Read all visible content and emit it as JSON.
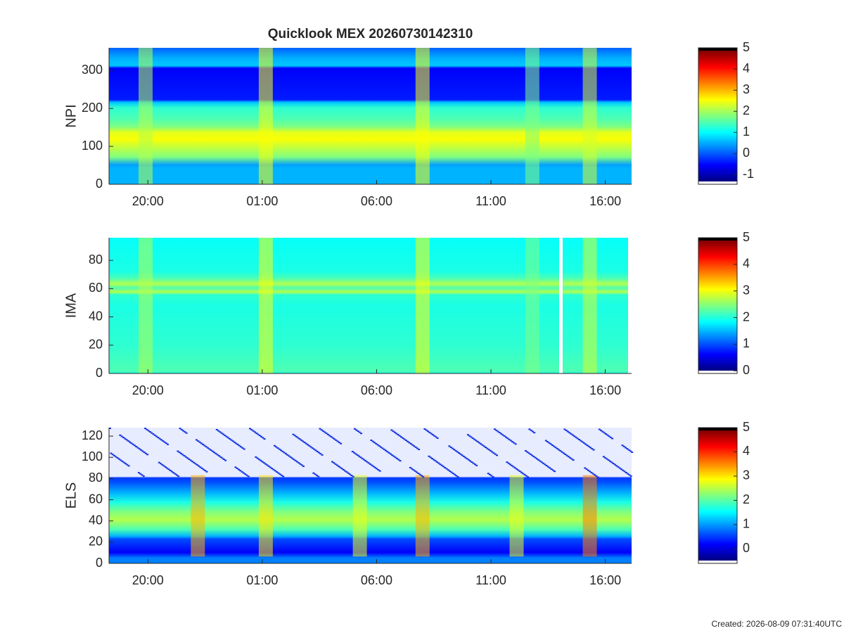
{
  "chart_data": [
    {
      "type": "heatmap",
      "title": "Quicklook MEX 20260730142310",
      "ylabel": "NPI",
      "xlim": [
        18.3,
        41.15
      ],
      "xticks": [
        {
          "value": 20,
          "label": "20:00"
        },
        {
          "value": 25,
          "label": "01:00"
        },
        {
          "value": 30,
          "label": "06:00"
        },
        {
          "value": 35,
          "label": "11:00"
        },
        {
          "value": 40,
          "label": "16:00"
        }
      ],
      "ylim": [
        0,
        360
      ],
      "yticks": [
        0,
        100,
        200,
        300
      ],
      "clim": [
        -1.45,
        5
      ],
      "cticks": [
        -1,
        0,
        1,
        2,
        3,
        4,
        5
      ]
    },
    {
      "type": "heatmap",
      "ylabel": "IMA",
      "xlim": [
        18.3,
        41.15
      ],
      "xticks": [
        {
          "value": 20,
          "label": "20:00"
        },
        {
          "value": 25,
          "label": "01:00"
        },
        {
          "value": 30,
          "label": "06:00"
        },
        {
          "value": 35,
          "label": "11:00"
        },
        {
          "value": 40,
          "label": "16:00"
        }
      ],
      "ylim": [
        0,
        96
      ],
      "yticks": [
        0,
        20,
        40,
        60,
        80
      ],
      "clim": [
        -0.1,
        5
      ],
      "cticks": [
        0,
        1,
        2,
        3,
        4,
        5
      ]
    },
    {
      "type": "heatmap",
      "ylabel": "ELS",
      "xlim": [
        18.3,
        41.15
      ],
      "xticks": [
        {
          "value": 20,
          "label": "20:00"
        },
        {
          "value": 25,
          "label": "01:00"
        },
        {
          "value": 30,
          "label": "06:00"
        },
        {
          "value": 35,
          "label": "11:00"
        },
        {
          "value": 40,
          "label": "16:00"
        }
      ],
      "ylim": [
        0,
        128
      ],
      "yticks": [
        0,
        20,
        40,
        60,
        80,
        100,
        120
      ],
      "clim": [
        -0.6,
        5
      ],
      "cticks": [
        0,
        1,
        2,
        3,
        4,
        5
      ]
    }
  ],
  "footer": "Created: 2026-08-09 07:31:40UTC"
}
